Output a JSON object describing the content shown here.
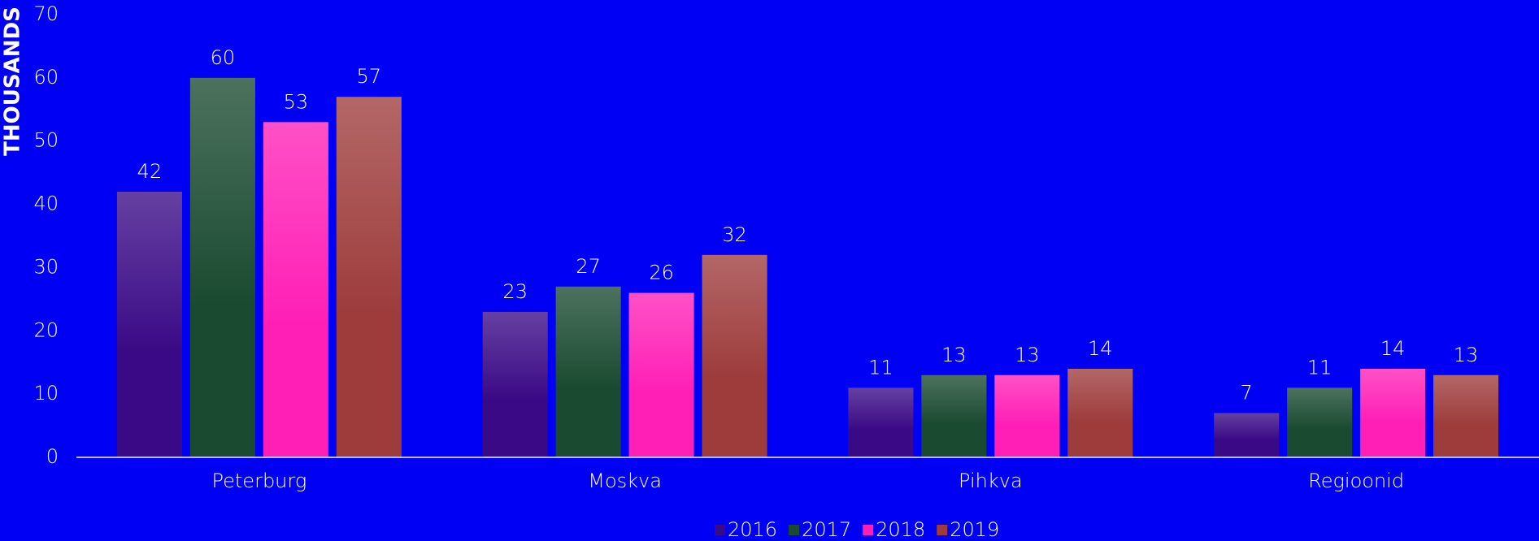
{
  "chart_data": {
    "type": "bar",
    "y_label": "THOUSANDS",
    "categories": [
      "Peterburg",
      "Moskva",
      "Pihkva",
      "Regioonid"
    ],
    "series": [
      {
        "name": "2016",
        "color": "#3a0a86",
        "values": [
          42,
          23,
          11,
          7
        ]
      },
      {
        "name": "2017",
        "color": "#1a4a30",
        "values": [
          60,
          27,
          13,
          11
        ]
      },
      {
        "name": "2018",
        "color": "#ff1fb6",
        "values": [
          53,
          26,
          13,
          14
        ]
      },
      {
        "name": "2019",
        "color": "#9e3c3c",
        "values": [
          57,
          32,
          14,
          13
        ]
      }
    ],
    "ylim": [
      0,
      70
    ],
    "yticks": [
      0,
      10,
      20,
      30,
      40,
      50,
      60,
      70
    ],
    "grid": false,
    "legend": "bottom"
  }
}
